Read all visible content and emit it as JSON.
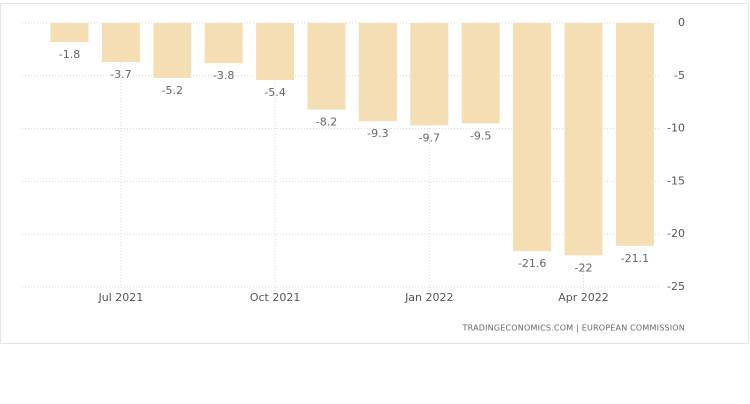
{
  "chart_data": {
    "type": "bar",
    "categories": [
      null,
      "Jul 2021",
      null,
      null,
      "Oct 2021",
      null,
      null,
      "Jan 2022",
      null,
      null,
      "Apr 2022",
      null
    ],
    "values": [
      -1.8,
      -3.7,
      -5.2,
      -3.8,
      -5.4,
      -8.2,
      -9.3,
      -9.7,
      -9.5,
      -21.6,
      -22,
      -21.1
    ],
    "color": "#f5deb3",
    "ylim": [
      -25,
      0
    ],
    "yticks": [
      0,
      -5,
      -10,
      -15,
      -20,
      -25
    ],
    "grid": true,
    "source": "TRADINGECONOMICS.COM | EUROPEAN COMMISSION"
  }
}
